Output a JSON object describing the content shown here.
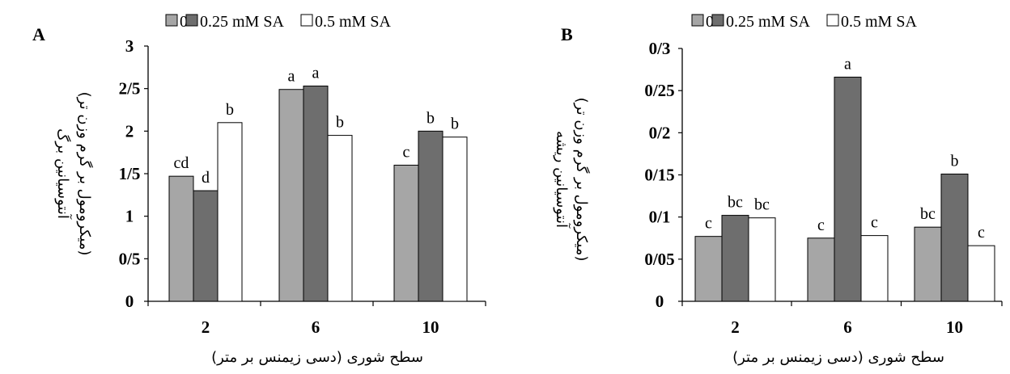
{
  "colors": {
    "s0": "#a6a6a6",
    "s025": "#6e6e6e",
    "s05": "#ffffff",
    "axis": "#000000"
  },
  "chart_data": [
    {
      "panel": "A",
      "type": "bar",
      "xlabel": "سطح شوری (دسی زیمنس بر متر)",
      "ylabel_line1": "آنتوسیانین برگ",
      "ylabel_line2": "(میکرومول بر گرم وزن تر)",
      "categories": [
        "2",
        "6",
        "10"
      ],
      "ylim": [
        0,
        3
      ],
      "yticks": [
        "0",
        "0/5",
        "1",
        "1/5",
        "2",
        "2/5",
        "3"
      ],
      "legend": [
        "0",
        "0.25 mM SA",
        "0.5 mM  SA"
      ],
      "series": [
        {
          "name": "0",
          "values": [
            1.47,
            2.49,
            1.6
          ],
          "labels": [
            "cd",
            "a",
            "c"
          ]
        },
        {
          "name": "0.25 mM SA",
          "values": [
            1.3,
            2.53,
            2.0
          ],
          "labels": [
            "d",
            "a",
            "b"
          ]
        },
        {
          "name": "0.5 mM  SA",
          "values": [
            2.1,
            1.95,
            1.93
          ],
          "labels": [
            "b",
            "b",
            "b"
          ]
        }
      ]
    },
    {
      "panel": "B",
      "type": "bar",
      "xlabel": "سطح شوری (دسی زیمنس بر متر)",
      "ylabel_line1": "آنتوسیانین ریشه",
      "ylabel_line2": "(میکرومول بر گرم وزن تر)",
      "categories": [
        "2",
        "6",
        "10"
      ],
      "ylim": [
        0,
        0.3
      ],
      "yticks": [
        "0",
        "0/05",
        "0/1",
        "0/15",
        "0/2",
        "0/25",
        "0/3"
      ],
      "legend": [
        "0",
        "0.25 mM SA",
        "0.5 mM  SA"
      ],
      "series": [
        {
          "name": "0",
          "values": [
            0.077,
            0.075,
            0.088
          ],
          "labels": [
            "c",
            "c",
            "bc"
          ]
        },
        {
          "name": "0.25 mM SA",
          "values": [
            0.102,
            0.266,
            0.151
          ],
          "labels": [
            "bc",
            "a",
            "b"
          ]
        },
        {
          "name": "0.5 mM  SA",
          "values": [
            0.099,
            0.078,
            0.066
          ],
          "labels": [
            "bc",
            "c",
            "c"
          ]
        }
      ]
    }
  ]
}
